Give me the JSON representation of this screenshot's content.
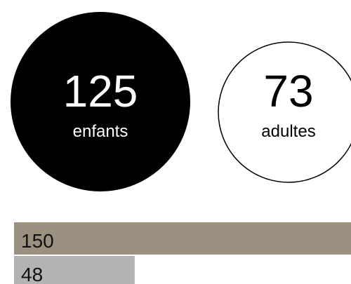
{
  "circles": [
    {
      "value": 125,
      "label": "enfants"
    },
    {
      "value": 73,
      "label": "adultes"
    }
  ],
  "bars": [
    {
      "value": 150,
      "color": "#9a9181"
    },
    {
      "value": 48,
      "color": "#b3b3b3"
    }
  ]
}
